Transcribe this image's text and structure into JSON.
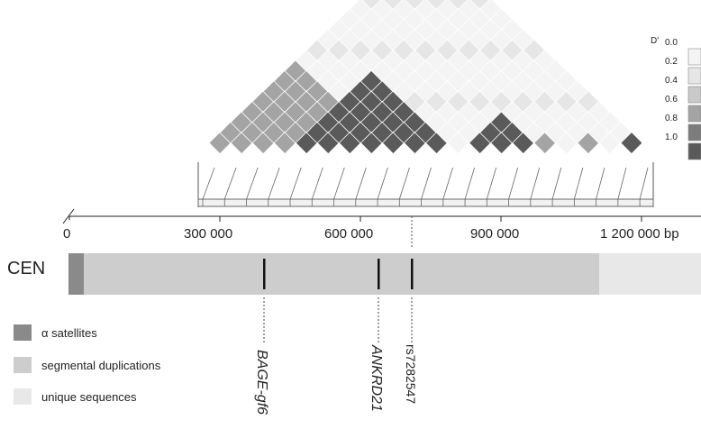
{
  "scale_legend": {
    "title": "D'",
    "levels": [
      {
        "label": "0.0",
        "color": "#f4f4f4"
      },
      {
        "label": "0.2",
        "color": "#e6e6e6"
      },
      {
        "label": "0.4",
        "color": "#c9c9c9"
      },
      {
        "label": "0.6",
        "color": "#a4a4a4"
      },
      {
        "label": "0.8",
        "color": "#7c7c7c"
      },
      {
        "label": "1.0",
        "color": "#5a5a5a"
      }
    ]
  },
  "axis": {
    "ticks": [
      "0",
      "300 000",
      "600 000",
      "900 000",
      "1 200 000 bp"
    ]
  },
  "chromosome": {
    "label": "CEN",
    "markers": [
      "BAGE-gf6",
      "ANKRD21",
      "rs7282547"
    ]
  },
  "region_legend": [
    {
      "label": "α satellites",
      "color": "#8a8a8a"
    },
    {
      "label": "segmental duplications",
      "color": "#cdcdcd"
    },
    {
      "label": "unique sequences",
      "color": "#e8e8e8"
    }
  ],
  "ld_matrix": {
    "n_markers": 21,
    "default_level": 0,
    "high_blocks": [
      [
        4,
        11
      ],
      [
        12,
        15
      ],
      [
        19,
        20
      ]
    ],
    "mid_blocks": [
      [
        0,
        8
      ],
      [
        8,
        10
      ],
      [
        15,
        16
      ],
      [
        17,
        18
      ]
    ]
  }
}
